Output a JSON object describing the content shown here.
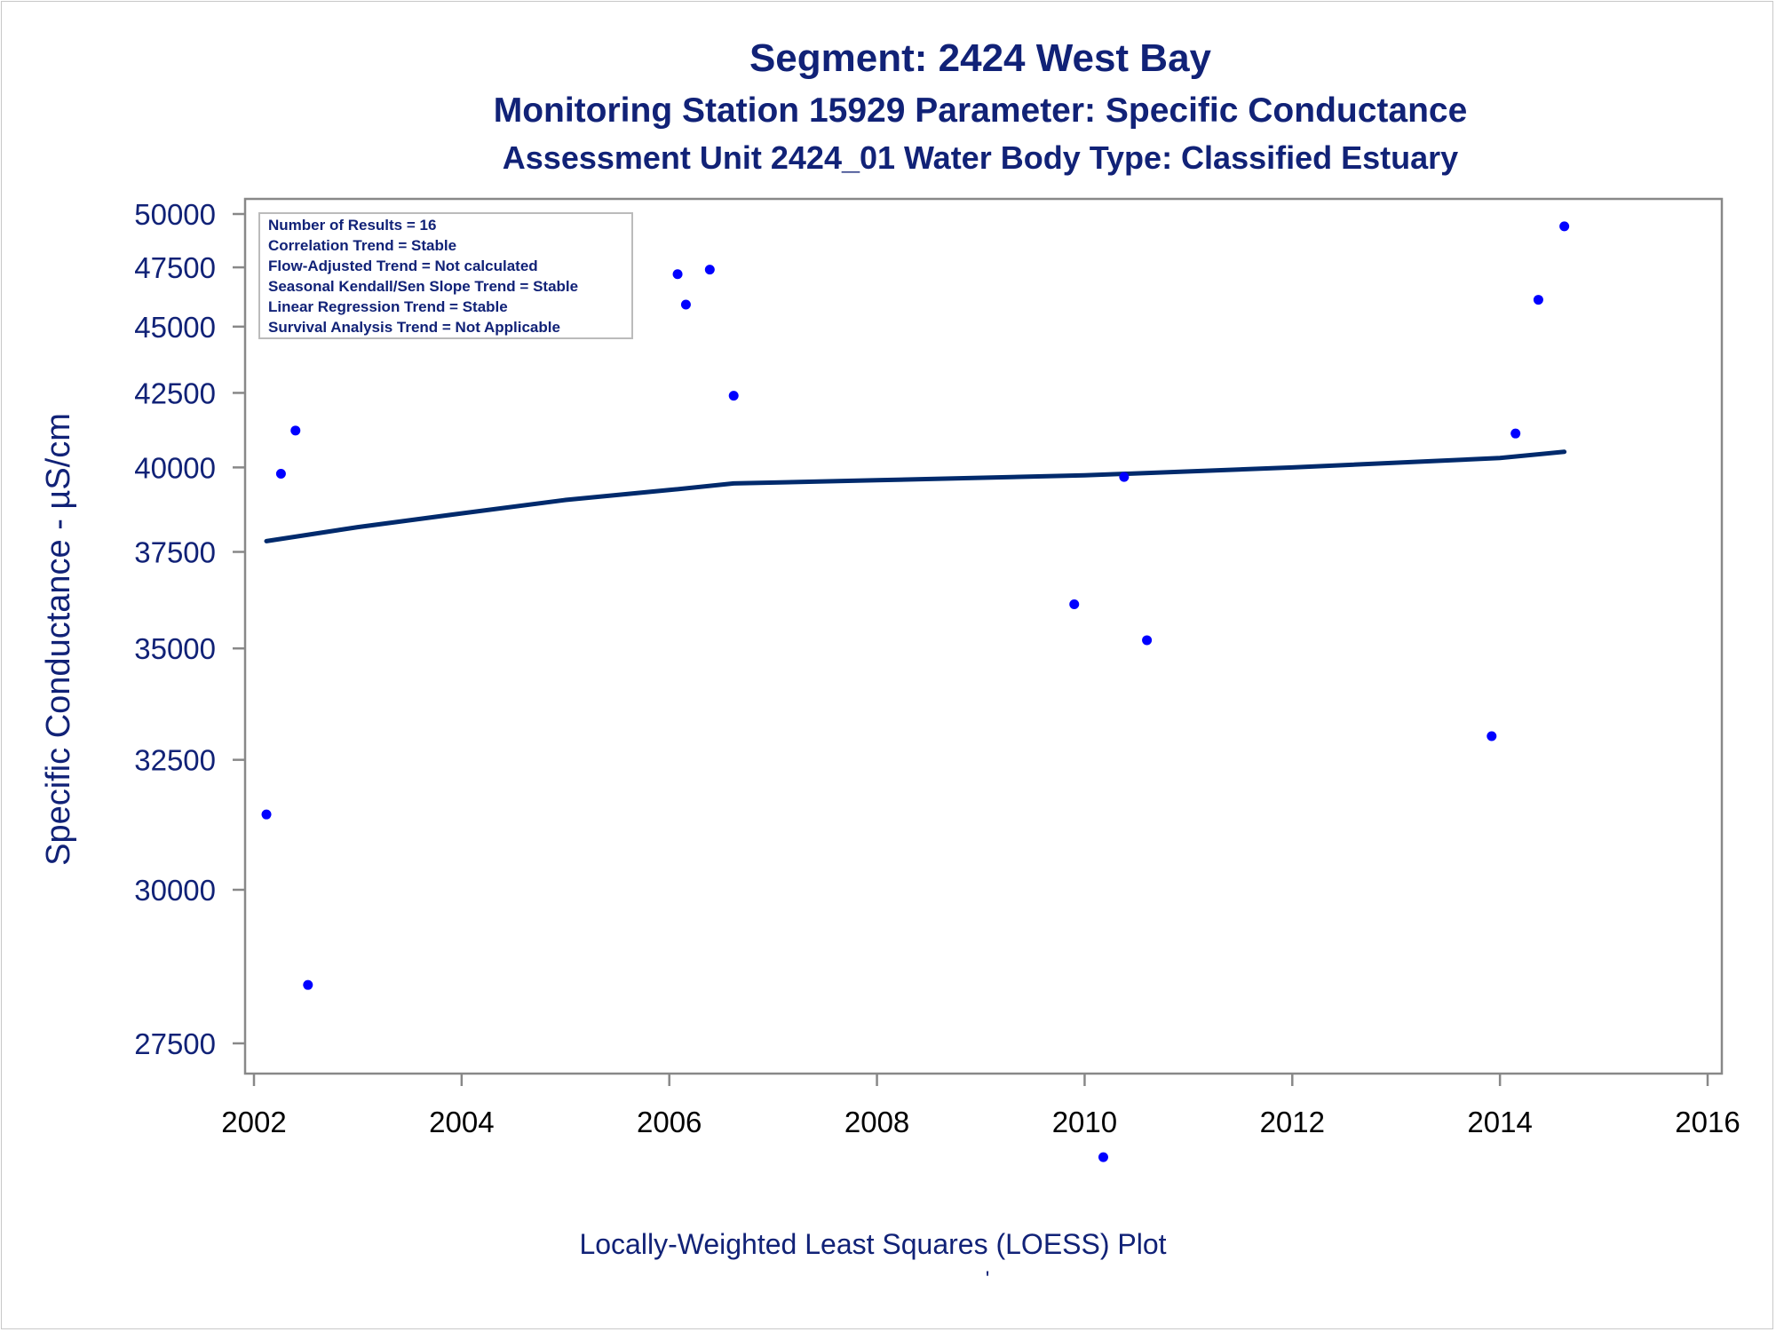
{
  "chart_data": {
    "type": "scatter",
    "titles": [
      "Segment: 2424  West Bay",
      "Monitoring Station 15929 Parameter: Specific Conductance",
      "Assessment Unit 2424_01   Water Body Type: Classified Estuary"
    ],
    "ylabel": "Specific Conductance -  µS/cm",
    "xlabel": "Locally-Weighted Least Squares (LOESS) Plot",
    "footnote": "'",
    "xlim": [
      2002,
      2016
    ],
    "ylim": [
      25000,
      50000
    ],
    "y_scale": "reciprocal",
    "x_ticks": [
      "2002",
      "2004",
      "2006",
      "2008",
      "2010",
      "2012",
      "2014",
      "2016"
    ],
    "y_ticks": [
      "27500",
      "30000",
      "32500",
      "35000",
      "37500",
      "40000",
      "42500",
      "45000",
      "47500",
      "50000"
    ],
    "legend_position": "top-left",
    "legend_lines": [
      "Number of Results = 16",
      "Correlation Trend = Stable",
      "Flow-Adjusted Trend = Not calculated",
      "Seasonal Kendall/Sen Slope Trend = Stable",
      "Linear Regression Trend = Stable",
      "Survival Analysis Trend = Not Applicable"
    ],
    "points": {
      "color": "#0000ff",
      "x": [
        2002.12,
        2002.26,
        2002.4,
        2002.52,
        2006.08,
        2006.16,
        2006.39,
        2006.62,
        2009.9,
        2010.18,
        2010.38,
        2010.6,
        2013.92,
        2014.15,
        2014.37,
        2014.62
      ],
      "y": [
        31400,
        39800,
        41200,
        28400,
        47200,
        45900,
        47400,
        42400,
        36100,
        25900,
        39700,
        35200,
        33000,
        41100,
        46100,
        49400
      ]
    },
    "loess": {
      "color": "#002a6c",
      "x": [
        2002.12,
        2003,
        2004,
        2005,
        2006,
        2006.62,
        2008,
        2010,
        2012,
        2014,
        2014.62
      ],
      "y": [
        37800,
        38200,
        38600,
        39000,
        39300,
        39500,
        39600,
        39750,
        40000,
        40300,
        40500
      ]
    }
  }
}
